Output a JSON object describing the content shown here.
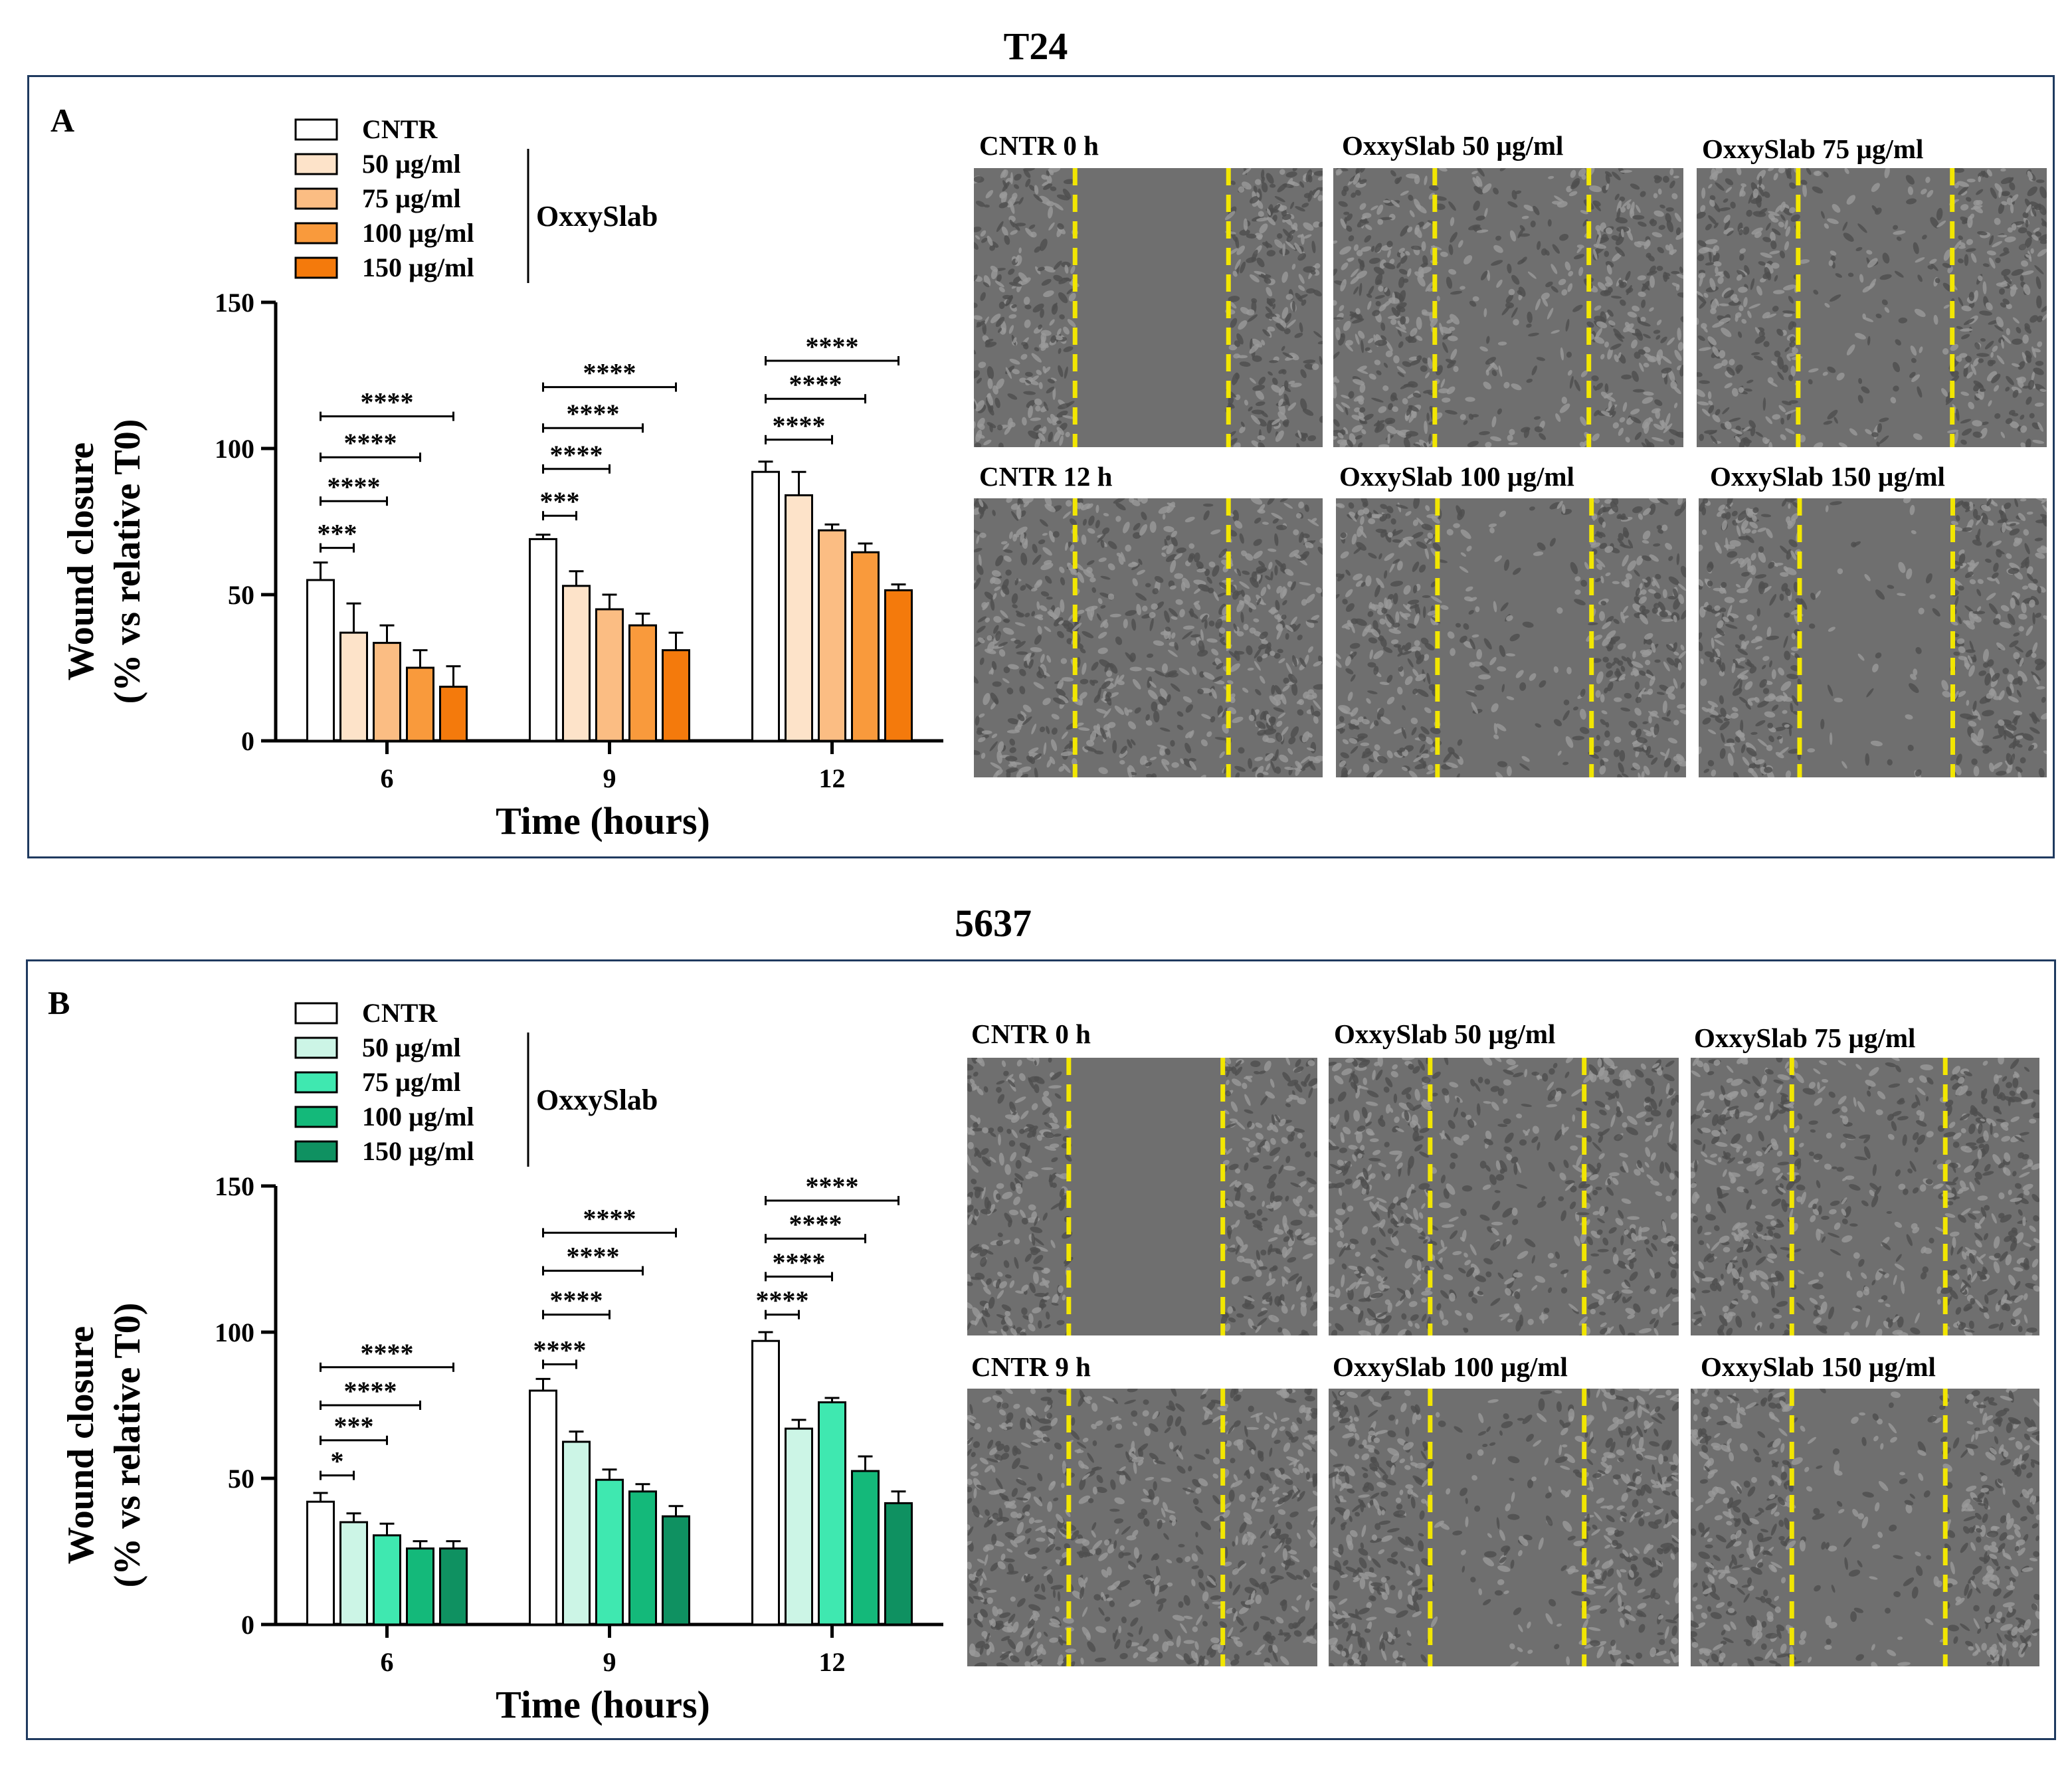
{
  "colors": {
    "panel_border": "#1f3a5f",
    "scratch_line": "#f2e600",
    "t24_series": [
      "#ffffff",
      "#fde3c9",
      "#fbbd83",
      "#f99a3c",
      "#f47a0c"
    ],
    "c5637_series": [
      "#ffffff",
      "#ccf5e6",
      "#3fe8b0",
      "#14b97a",
      "#0f9161"
    ]
  },
  "sections": [
    {
      "title": "T24",
      "panel_letter": "A",
      "legend": {
        "entries": [
          "CNTR",
          "50 µg/ml",
          "75 µg/ml",
          "100 µg/ml",
          "150 µg/ml"
        ],
        "group_label": "OxxySlab"
      },
      "chart_data": {
        "type": "bar",
        "categories": [
          "6",
          "9",
          "12"
        ],
        "series": [
          {
            "name": "CNTR",
            "values": [
              55,
              69,
              92
            ],
            "errors": [
              6,
              1.5,
              3.5
            ]
          },
          {
            "name": "50 µg/ml",
            "values": [
              37,
              53,
              84
            ],
            "errors": [
              10,
              5,
              8
            ]
          },
          {
            "name": "75 µg/ml",
            "values": [
              33.5,
              45,
              72
            ],
            "errors": [
              6,
              5,
              2
            ]
          },
          {
            "name": "100 µg/ml",
            "values": [
              25,
              39.5,
              64.5
            ],
            "errors": [
              6,
              4,
              3
            ]
          },
          {
            "name": "150 µg/ml",
            "values": [
              18.5,
              31,
              51.5
            ],
            "errors": [
              7,
              6,
              2
            ]
          }
        ],
        "significance": [
          [
            {
              "label": "***",
              "from": 0,
              "to": 1,
              "y": 66
            },
            {
              "label": "****",
              "from": 0,
              "to": 2,
              "y": 82
            },
            {
              "label": "****",
              "from": 0,
              "to": 3,
              "y": 97
            },
            {
              "label": "****",
              "from": 0,
              "to": 4,
              "y": 111
            }
          ],
          [
            {
              "label": "***",
              "from": 0,
              "to": 1,
              "y": 77
            },
            {
              "label": "****",
              "from": 0,
              "to": 2,
              "y": 93
            },
            {
              "label": "****",
              "from": 0,
              "to": 3,
              "y": 107
            },
            {
              "label": "****",
              "from": 0,
              "to": 4,
              "y": 121
            }
          ],
          [
            {
              "label": "****",
              "from": 0,
              "to": 2,
              "y": 103
            },
            {
              "label": "****",
              "from": 0,
              "to": 3,
              "y": 117
            },
            {
              "label": "****",
              "from": 0,
              "to": 4,
              "y": 130
            }
          ]
        ],
        "ylabel_line1": "Wound closure",
        "ylabel_line2": "(% vs relative T0)",
        "xlabel": "Time (hours)",
        "ylim": [
          0,
          150
        ],
        "yticks": [
          0,
          50,
          100,
          150
        ],
        "legend_position": "top-left"
      },
      "images": [
        {
          "label": "CNTR 0 h",
          "closed": 0.0
        },
        {
          "label": "OxxySlab 50 µg/ml",
          "closed": 0.5
        },
        {
          "label": "OxxySlab 75 µg/ml",
          "closed": 0.35
        },
        {
          "label": "CNTR 12 h",
          "closed": 0.9
        },
        {
          "label": "OxxySlab 100 µg/ml",
          "closed": 0.3
        },
        {
          "label": "OxxySlab 150 µg/ml",
          "closed": 0.15
        }
      ]
    },
    {
      "title": "5637",
      "panel_letter": "B",
      "legend": {
        "entries": [
          "CNTR",
          "50 µg/ml",
          "75 µg/ml",
          "100 µg/ml",
          "150 µg/ml"
        ],
        "group_label": "OxxySlab"
      },
      "chart_data": {
        "type": "bar",
        "categories": [
          "6",
          "9",
          "12"
        ],
        "series": [
          {
            "name": "CNTR",
            "values": [
              42,
              80,
              97
            ],
            "errors": [
              3,
              4,
              3
            ]
          },
          {
            "name": "50 µg/ml",
            "values": [
              35,
              62.5,
              67
            ],
            "errors": [
              3,
              3.5,
              3
            ]
          },
          {
            "name": "75 µg/ml",
            "values": [
              30.5,
              49.5,
              76
            ],
            "errors": [
              4,
              3.5,
              1.5
            ]
          },
          {
            "name": "100 µg/ml",
            "values": [
              26,
              45.5,
              52.5
            ],
            "errors": [
              2.5,
              2.5,
              5
            ]
          },
          {
            "name": "150 µg/ml",
            "values": [
              26,
              37,
              41.5
            ],
            "errors": [
              2.5,
              3.5,
              4
            ]
          }
        ],
        "significance": [
          [
            {
              "label": "*",
              "from": 0,
              "to": 1,
              "y": 51
            },
            {
              "label": "***",
              "from": 0,
              "to": 2,
              "y": 63
            },
            {
              "label": "****",
              "from": 0,
              "to": 3,
              "y": 75
            },
            {
              "label": "****",
              "from": 0,
              "to": 4,
              "y": 88
            }
          ],
          [
            {
              "label": "****",
              "from": 0,
              "to": 1,
              "y": 89
            },
            {
              "label": "****",
              "from": 0,
              "to": 2,
              "y": 106
            },
            {
              "label": "****",
              "from": 0,
              "to": 3,
              "y": 121
            },
            {
              "label": "****",
              "from": 0,
              "to": 4,
              "y": 134
            }
          ],
          [
            {
              "label": "****",
              "from": 0,
              "to": 1,
              "y": 106
            },
            {
              "label": "****",
              "from": 0,
              "to": 2,
              "y": 119
            },
            {
              "label": "****",
              "from": 0,
              "to": 3,
              "y": 132
            },
            {
              "label": "****",
              "from": 0,
              "to": 4,
              "y": 145
            }
          ]
        ],
        "ylabel_line1": "Wound closure",
        "ylabel_line2": "(% vs relative T0)",
        "xlabel": "Time (hours)",
        "ylim": [
          0,
          150
        ],
        "yticks": [
          0,
          50,
          100,
          150
        ],
        "legend_position": "top-left"
      },
      "images": [
        {
          "label": "CNTR 0 h",
          "closed": 0.0
        },
        {
          "label": "OxxySlab 50 µg/ml",
          "closed": 0.55
        },
        {
          "label": "OxxySlab 75 µg/ml",
          "closed": 0.5
        },
        {
          "label": "CNTR 9 h",
          "closed": 0.75
        },
        {
          "label": "OxxySlab 100 µg/ml",
          "closed": 0.35
        },
        {
          "label": "OxxySlab 150 µg/ml",
          "closed": 0.25
        }
      ]
    }
  ]
}
